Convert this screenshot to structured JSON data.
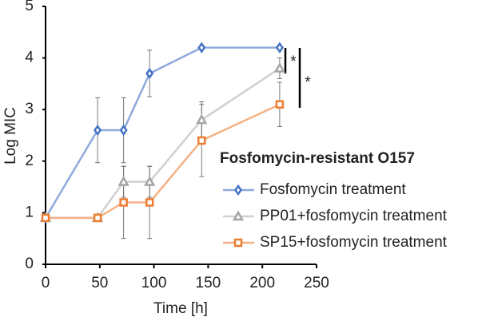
{
  "chart_data": {
    "type": "line",
    "x_label": "Time [h]",
    "y_label": "Log MIC",
    "legend_title": "Fosfomycin-resistant O157",
    "x": [
      0,
      48,
      72,
      96,
      144,
      216
    ],
    "series": [
      {
        "name": "Fosfomycin treatment",
        "color": "#4472c4",
        "line_color": "#8faadc",
        "marker": "diamond",
        "values": [
          0.9,
          2.6,
          2.6,
          3.7,
          4.2,
          4.2
        ],
        "errors": [
          0,
          0.63,
          0.63,
          0.45,
          0,
          0
        ]
      },
      {
        "name": "PP01+fosfomycin treatment",
        "color": "#a5a5a5",
        "line_color": "#d0d0d0",
        "marker": "triangle",
        "values": [
          0.9,
          0.9,
          1.6,
          1.6,
          2.8,
          3.8
        ],
        "errors": [
          0,
          0,
          0.3,
          0.3,
          0.35,
          0.2
        ]
      },
      {
        "name": "SP15+fosfomycin treatment",
        "color": "#ed7d31",
        "line_color": "#f4b183",
        "marker": "square",
        "values": [
          0.9,
          0.9,
          1.2,
          1.2,
          2.4,
          3.1
        ],
        "errors": [
          0,
          0,
          0.7,
          0.7,
          0.7,
          0.43
        ]
      }
    ],
    "xlim": [
      0,
      250
    ],
    "xticks": [
      0,
      50,
      100,
      150,
      200,
      250
    ],
    "ylim": [
      0,
      5
    ],
    "yticks": [
      0,
      1,
      2,
      3,
      4,
      5
    ],
    "annotations": [
      "*",
      "*"
    ],
    "grid": false
  }
}
